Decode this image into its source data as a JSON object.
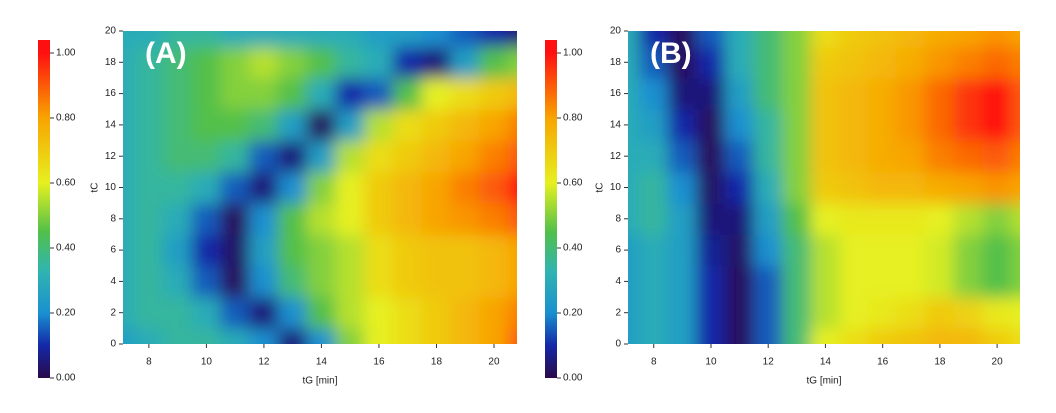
{
  "chart_data": [
    {
      "type": "heatmap",
      "panel_label": "(A)",
      "x_label": "tG [min]",
      "y_label": "tC",
      "x": [
        7,
        8,
        9,
        10,
        11,
        12,
        13,
        14,
        15,
        16,
        17,
        18,
        19,
        20,
        21
      ],
      "y": [
        0,
        2,
        4,
        6,
        8,
        10,
        12,
        14,
        16,
        18,
        20
      ],
      "z": [
        [
          0.25,
          0.3,
          0.35,
          0.35,
          0.3,
          0.2,
          0.05,
          0.2,
          0.5,
          0.6,
          0.65,
          0.7,
          0.75,
          0.8,
          0.9
        ],
        [
          0.3,
          0.35,
          0.35,
          0.3,
          0.15,
          0.05,
          0.2,
          0.45,
          0.55,
          0.6,
          0.65,
          0.7,
          0.75,
          0.8,
          0.85
        ],
        [
          0.3,
          0.35,
          0.3,
          0.15,
          0.02,
          0.2,
          0.4,
          0.5,
          0.55,
          0.65,
          0.7,
          0.72,
          0.72,
          0.75,
          0.8
        ],
        [
          0.3,
          0.35,
          0.25,
          0.1,
          0.03,
          0.25,
          0.45,
          0.5,
          0.55,
          0.65,
          0.7,
          0.72,
          0.72,
          0.75,
          0.8
        ],
        [
          0.3,
          0.35,
          0.3,
          0.15,
          0.02,
          0.2,
          0.45,
          0.55,
          0.6,
          0.7,
          0.75,
          0.8,
          0.82,
          0.85,
          0.9
        ],
        [
          0.3,
          0.35,
          0.35,
          0.3,
          0.15,
          0.05,
          0.2,
          0.5,
          0.6,
          0.7,
          0.75,
          0.8,
          0.85,
          0.9,
          1.0
        ],
        [
          0.3,
          0.35,
          0.4,
          0.4,
          0.35,
          0.15,
          0.05,
          0.25,
          0.55,
          0.65,
          0.7,
          0.75,
          0.8,
          0.85,
          0.9
        ],
        [
          0.3,
          0.35,
          0.4,
          0.45,
          0.45,
          0.4,
          0.25,
          0.02,
          0.25,
          0.55,
          0.65,
          0.7,
          0.75,
          0.8,
          0.85
        ],
        [
          0.3,
          0.35,
          0.4,
          0.45,
          0.5,
          0.5,
          0.45,
          0.3,
          0.1,
          0.15,
          0.45,
          0.6,
          0.65,
          0.7,
          0.75
        ],
        [
          0.3,
          0.35,
          0.4,
          0.45,
          0.5,
          0.55,
          0.5,
          0.45,
          0.35,
          0.3,
          0.1,
          0.05,
          0.25,
          0.45,
          0.5
        ],
        [
          0.3,
          0.3,
          0.35,
          0.35,
          0.3,
          0.3,
          0.3,
          0.3,
          0.3,
          0.25,
          0.25,
          0.2,
          0.15,
          0.1,
          0.05
        ]
      ],
      "xlim": [
        7.1,
        20.8
      ],
      "ylim": [
        0,
        20
      ],
      "xticks": [
        8,
        10,
        12,
        14,
        16,
        18,
        20
      ],
      "yticks": [
        0,
        2,
        4,
        6,
        8,
        10,
        12,
        14,
        16,
        18,
        20
      ],
      "colorbar_lim": [
        0,
        1.04
      ],
      "colorbar_ticks": [
        {
          "value": 0,
          "label": "0.00"
        },
        {
          "value": 0.2,
          "label": "0.20"
        },
        {
          "value": 0.4,
          "label": "0.40"
        },
        {
          "value": 0.6,
          "label": "0.60"
        },
        {
          "value": 0.8,
          "label": "0.80"
        },
        {
          "value": 1,
          "label": "1.00"
        }
      ],
      "colorscale": [
        [
          0,
          "#2a0a4a"
        ],
        [
          0.1,
          "#1428a8"
        ],
        [
          0.2,
          "#1a90d0"
        ],
        [
          0.33,
          "#30b4b0"
        ],
        [
          0.45,
          "#52c04a"
        ],
        [
          0.6,
          "#e6f020"
        ],
        [
          0.8,
          "#f8a400"
        ],
        [
          1,
          "#ff1010"
        ]
      ]
    },
    {
      "type": "heatmap",
      "panel_label": "(B)",
      "x_label": "tG [min]",
      "y_label": "tC",
      "x": [
        7,
        8,
        9,
        10,
        11,
        12,
        13,
        14,
        15,
        16,
        17,
        18,
        19,
        20,
        21
      ],
      "y": [
        0,
        2,
        4,
        6,
        8,
        10,
        12,
        14,
        16,
        18,
        20
      ],
      "z": [
        [
          0.25,
          0.3,
          0.25,
          0.1,
          0.02,
          0.15,
          0.4,
          0.6,
          0.65,
          0.7,
          0.72,
          0.75,
          0.75,
          0.7,
          0.65
        ],
        [
          0.25,
          0.3,
          0.25,
          0.1,
          0.02,
          0.15,
          0.4,
          0.55,
          0.6,
          0.62,
          0.65,
          0.7,
          0.68,
          0.62,
          0.6
        ],
        [
          0.25,
          0.3,
          0.25,
          0.1,
          0.02,
          0.15,
          0.4,
          0.55,
          0.6,
          0.6,
          0.6,
          0.58,
          0.5,
          0.45,
          0.5
        ],
        [
          0.25,
          0.3,
          0.25,
          0.08,
          0.03,
          0.2,
          0.4,
          0.55,
          0.6,
          0.6,
          0.6,
          0.58,
          0.5,
          0.45,
          0.5
        ],
        [
          0.3,
          0.35,
          0.25,
          0.05,
          0.05,
          0.25,
          0.45,
          0.6,
          0.62,
          0.62,
          0.62,
          0.6,
          0.55,
          0.5,
          0.55
        ],
        [
          0.3,
          0.35,
          0.2,
          0.03,
          0.1,
          0.3,
          0.5,
          0.7,
          0.72,
          0.75,
          0.75,
          0.78,
          0.8,
          0.82,
          0.8
        ],
        [
          0.3,
          0.3,
          0.15,
          0.02,
          0.15,
          0.35,
          0.5,
          0.72,
          0.75,
          0.78,
          0.8,
          0.85,
          0.88,
          0.9,
          0.85
        ],
        [
          0.3,
          0.25,
          0.1,
          0.02,
          0.2,
          0.35,
          0.5,
          0.72,
          0.75,
          0.78,
          0.82,
          0.88,
          0.95,
          1.0,
          0.9
        ],
        [
          0.3,
          0.2,
          0.05,
          0.05,
          0.25,
          0.4,
          0.5,
          0.72,
          0.75,
          0.78,
          0.82,
          0.88,
          0.95,
          1.0,
          0.9
        ],
        [
          0.3,
          0.15,
          0.02,
          0.1,
          0.3,
          0.4,
          0.5,
          0.7,
          0.72,
          0.75,
          0.78,
          0.82,
          0.85,
          0.88,
          0.85
        ],
        [
          0.3,
          0.1,
          0.02,
          0.15,
          0.3,
          0.4,
          0.5,
          0.65,
          0.7,
          0.72,
          0.75,
          0.78,
          0.8,
          0.82,
          0.8
        ]
      ],
      "xlim": [
        7.1,
        20.8
      ],
      "ylim": [
        0,
        20
      ],
      "xticks": [
        8,
        10,
        12,
        14,
        16,
        18,
        20
      ],
      "yticks": [
        0,
        2,
        4,
        6,
        8,
        10,
        12,
        14,
        16,
        18,
        20
      ],
      "colorbar_lim": [
        0,
        1.04
      ],
      "colorbar_ticks": [
        {
          "value": 0,
          "label": "0.00"
        },
        {
          "value": 0.2,
          "label": "0.20"
        },
        {
          "value": 0.4,
          "label": "0.40"
        },
        {
          "value": 0.6,
          "label": "0.60"
        },
        {
          "value": 0.8,
          "label": "0.80"
        },
        {
          "value": 1,
          "label": "1.00"
        }
      ],
      "colorscale": [
        [
          0,
          "#2a0a4a"
        ],
        [
          0.1,
          "#1428a8"
        ],
        [
          0.2,
          "#1a90d0"
        ],
        [
          0.33,
          "#30b4b0"
        ],
        [
          0.45,
          "#52c04a"
        ],
        [
          0.6,
          "#e6f020"
        ],
        [
          0.8,
          "#f8a400"
        ],
        [
          1,
          "#ff1010"
        ]
      ]
    }
  ]
}
